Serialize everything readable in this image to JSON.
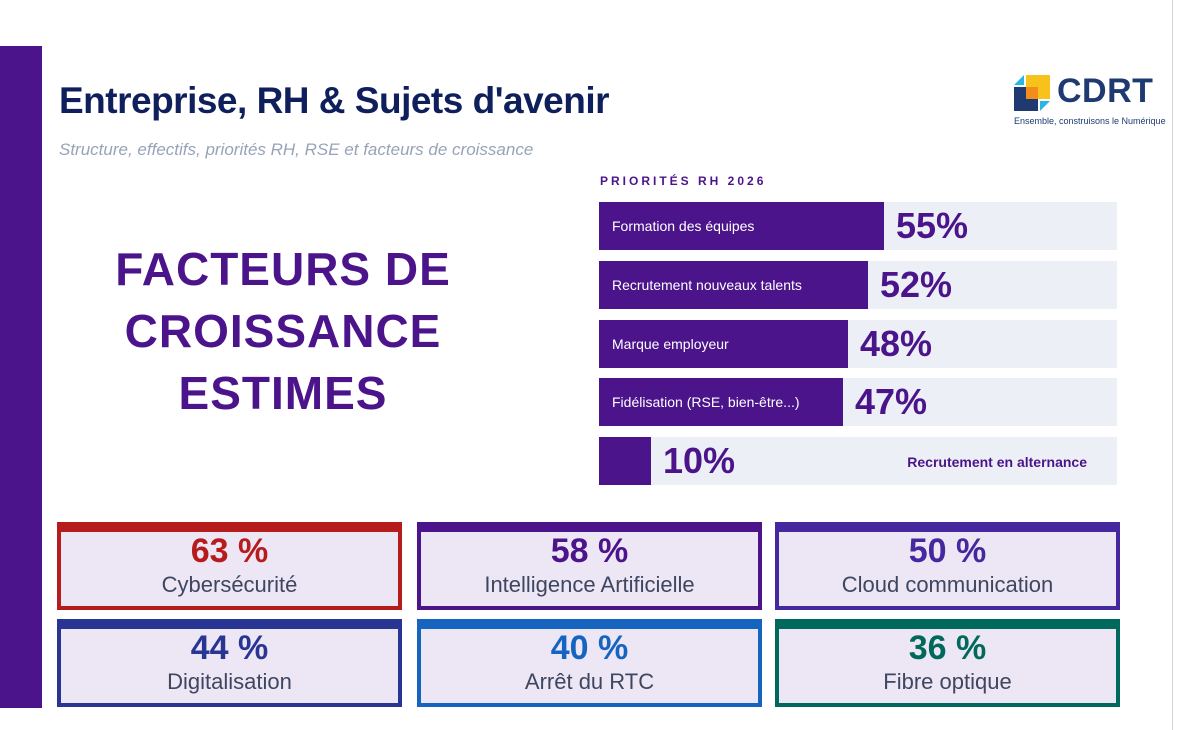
{
  "header": {
    "title": "Entreprise, RH & Sujets d'avenir",
    "subtitle": "Structure, effectifs, priorités RH, RSE et facteurs de croissance"
  },
  "logo": {
    "name": "CDRT",
    "tagline": "Ensemble, construisons le Numérique",
    "colors": [
      "#29b6e6",
      "#f7c21a",
      "#1e3a70",
      "#f28c1a"
    ]
  },
  "growth_section": {
    "lines": [
      "FACTEURS DE",
      "CROISSANCE",
      "ESTIMES"
    ]
  },
  "rh_priorities": {
    "heading": "PRIORITÉS RH 2026",
    "accent_color": "#4b148b",
    "items": [
      {
        "label": "Formation des équipes",
        "value": 55,
        "display": "55%"
      },
      {
        "label": "Recrutement nouveaux talents",
        "value": 52,
        "display": "52%"
      },
      {
        "label": "Marque employeur",
        "value": 48,
        "display": "48%"
      },
      {
        "label": "Fidélisation (RSE, bien-être...)",
        "value": 47,
        "display": "47%"
      },
      {
        "label": "Recrutement en alternance",
        "value": 10,
        "display": "10%"
      }
    ]
  },
  "growth_factors": [
    {
      "value": "63 %",
      "label": "Cybersécurité",
      "color": "#b71c1c"
    },
    {
      "value": "58 %",
      "label": "Intelligence Artificielle",
      "color": "#4b148b"
    },
    {
      "value": "50 %",
      "label": "Cloud communication",
      "color": "#45289e"
    },
    {
      "value": "44 %",
      "label": "Digitalisation",
      "color": "#283593"
    },
    {
      "value": "40 %",
      "label": "Arrêt du RTC",
      "color": "#1565c0"
    },
    {
      "value": "36 %",
      "label": "Fibre optique",
      "color": "#00695c"
    }
  ]
}
